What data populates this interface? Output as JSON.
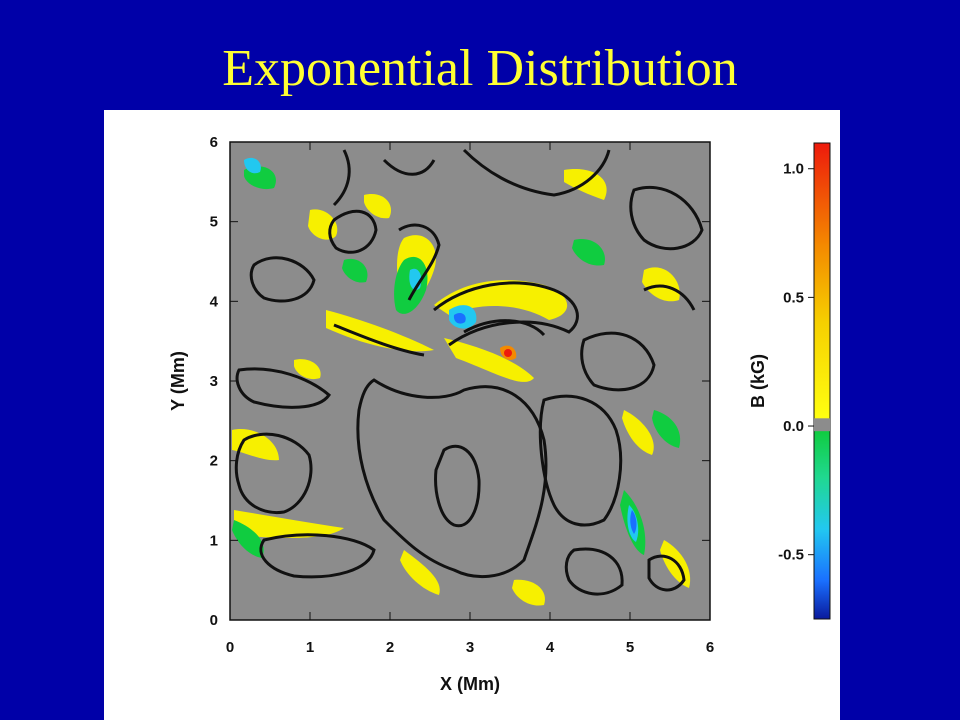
{
  "slide": {
    "title": "Exponential Distribution"
  },
  "colors": {
    "background": "#0000a8",
    "title": "#ffff33",
    "map_gray": "#8c8c8c",
    "contour": "#111111"
  },
  "chart_data": [
    {
      "type": "heatmap",
      "title": "",
      "xlabel": "X (Mm)",
      "ylabel": "Y (Mm)",
      "xlim": [
        0,
        6
      ],
      "ylim": [
        0,
        6
      ],
      "x_ticks": [
        "0",
        "1",
        "2",
        "3",
        "4",
        "5",
        "6"
      ],
      "y_ticks": [
        "0",
        "1",
        "2",
        "3",
        "4",
        "5",
        "6"
      ],
      "contours": "black closed contour lines outlining gray (~0 kG) regions",
      "colorbar": {
        "label": "B (kG)",
        "range": [
          -0.75,
          1.1
        ],
        "ticks": [
          "1.0",
          "0.5",
          "0.0",
          "-0.5"
        ],
        "tick_values": [
          1.0,
          0.5,
          0.0,
          -0.5
        ],
        "colormap": [
          {
            "value": -0.75,
            "color": "#0a1a9c"
          },
          {
            "value": -0.6,
            "color": "#1a70ff"
          },
          {
            "value": -0.4,
            "color": "#22c8f0"
          },
          {
            "value": -0.2,
            "color": "#20d890"
          },
          {
            "value": -0.02,
            "color": "#10cc40"
          },
          {
            "value": 0.0,
            "color": "#8c8c8c"
          },
          {
            "value": 0.03,
            "color": "#ffff10"
          },
          {
            "value": 0.4,
            "color": "#f6d000"
          },
          {
            "value": 0.7,
            "color": "#f48a00"
          },
          {
            "value": 1.1,
            "color": "#ee1a0c"
          }
        ]
      }
    }
  ]
}
